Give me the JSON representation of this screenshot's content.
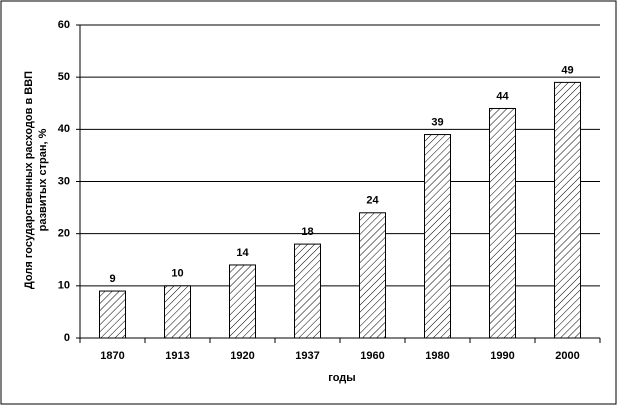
{
  "chart_data": {
    "type": "bar",
    "ylabel": [
      "Доля государственных расходов в ВВП",
      "развитых стран, %"
    ],
    "xlabel": "годы",
    "categories": [
      "1870",
      "1913",
      "1920",
      "1937",
      "1960",
      "1980",
      "1990",
      "2000"
    ],
    "values": [
      9,
      10,
      14,
      18,
      24,
      39,
      44,
      49
    ],
    "color": "#000000",
    "ylim": [
      0,
      60
    ],
    "yticks": [
      0,
      10,
      20,
      30,
      40,
      50,
      60
    ],
    "grid": true
  }
}
